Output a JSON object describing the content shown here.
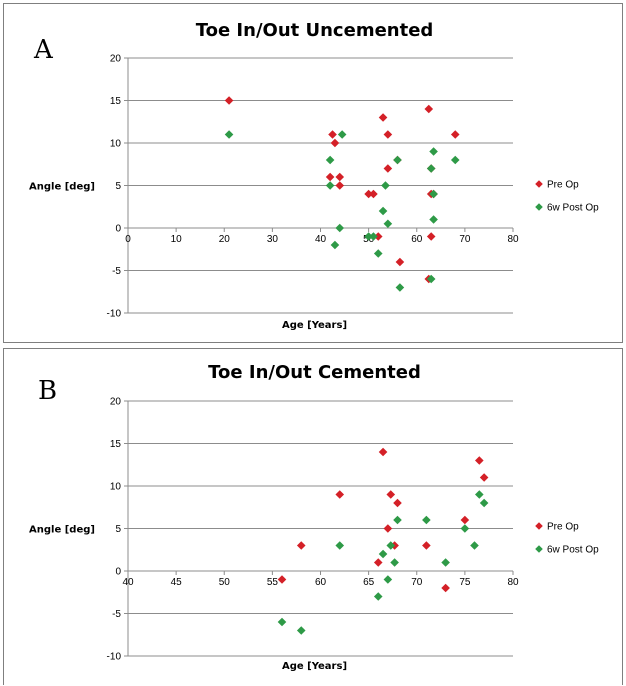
{
  "chart_data": [
    {
      "type": "scatter",
      "panel_label": "A",
      "title": "Toe In/Out Uncemented",
      "xlabel": "Age [Years]",
      "ylabel": "Angle [deg]",
      "xlim": [
        0,
        80
      ],
      "ylim": [
        -10,
        20
      ],
      "xticks": [
        0,
        10,
        20,
        30,
        40,
        50,
        60,
        70,
        80
      ],
      "yticks": [
        -10,
        -5,
        0,
        5,
        10,
        15,
        20
      ],
      "grid": "horizontal",
      "legend_position": "right",
      "series": [
        {
          "name": "Pre Op",
          "color": "#d42027",
          "points": [
            [
              21,
              15
            ],
            [
              42.5,
              11
            ],
            [
              43,
              10
            ],
            [
              42,
              6
            ],
            [
              44,
              6
            ],
            [
              44,
              5
            ],
            [
              50,
              4
            ],
            [
              51,
              4
            ],
            [
              52,
              -1
            ],
            [
              53,
              13
            ],
            [
              54,
              11
            ],
            [
              54,
              7
            ],
            [
              56,
              8
            ],
            [
              56.5,
              -4
            ],
            [
              62.5,
              14
            ],
            [
              63,
              7
            ],
            [
              63,
              4
            ],
            [
              63.5,
              4
            ],
            [
              63,
              -1
            ],
            [
              62.5,
              -6
            ],
            [
              68,
              11
            ]
          ]
        },
        {
          "name": "6w Post Op",
          "color": "#2e9a47",
          "points": [
            [
              21,
              11
            ],
            [
              42,
              8
            ],
            [
              42,
              5
            ],
            [
              43,
              -2
            ],
            [
              44,
              0
            ],
            [
              44.5,
              11
            ],
            [
              50,
              -1
            ],
            [
              51,
              -1
            ],
            [
              52,
              -3
            ],
            [
              53,
              2
            ],
            [
              53.5,
              5
            ],
            [
              54,
              0.5
            ],
            [
              56,
              8
            ],
            [
              56.5,
              -7
            ],
            [
              63,
              7
            ],
            [
              63.5,
              9
            ],
            [
              63.5,
              4
            ],
            [
              63.5,
              1
            ],
            [
              63,
              -6
            ],
            [
              68,
              8
            ]
          ]
        }
      ]
    },
    {
      "type": "scatter",
      "panel_label": "B",
      "title": "Toe In/Out Cemented",
      "xlabel": "Age [Years]",
      "ylabel": "Angle [deg]",
      "xlim": [
        40,
        80
      ],
      "ylim": [
        -10,
        20
      ],
      "xticks": [
        40,
        45,
        50,
        55,
        60,
        65,
        70,
        75,
        80
      ],
      "yticks": [
        -10,
        -5,
        0,
        5,
        10,
        15,
        20
      ],
      "grid": "horizontal",
      "legend_position": "right",
      "series": [
        {
          "name": "Pre Op",
          "color": "#d42027",
          "points": [
            [
              56,
              -1
            ],
            [
              58,
              3
            ],
            [
              62,
              9
            ],
            [
              66,
              1
            ],
            [
              66.5,
              14
            ],
            [
              67,
              5
            ],
            [
              67.3,
              9
            ],
            [
              67.7,
              3
            ],
            [
              68,
              8
            ],
            [
              71,
              3
            ],
            [
              73,
              -2
            ],
            [
              75,
              6
            ],
            [
              76.5,
              13
            ],
            [
              77,
              11
            ]
          ]
        },
        {
          "name": "6w Post Op",
          "color": "#2e9a47",
          "points": [
            [
              56,
              -6
            ],
            [
              58,
              -7
            ],
            [
              62,
              3
            ],
            [
              66,
              -3
            ],
            [
              66.5,
              2
            ],
            [
              67,
              -1
            ],
            [
              67.3,
              3
            ],
            [
              67.7,
              1
            ],
            [
              68,
              6
            ],
            [
              71,
              6
            ],
            [
              73,
              1
            ],
            [
              75,
              5
            ],
            [
              76,
              3
            ],
            [
              76.5,
              9
            ],
            [
              77,
              8
            ]
          ]
        }
      ]
    }
  ]
}
